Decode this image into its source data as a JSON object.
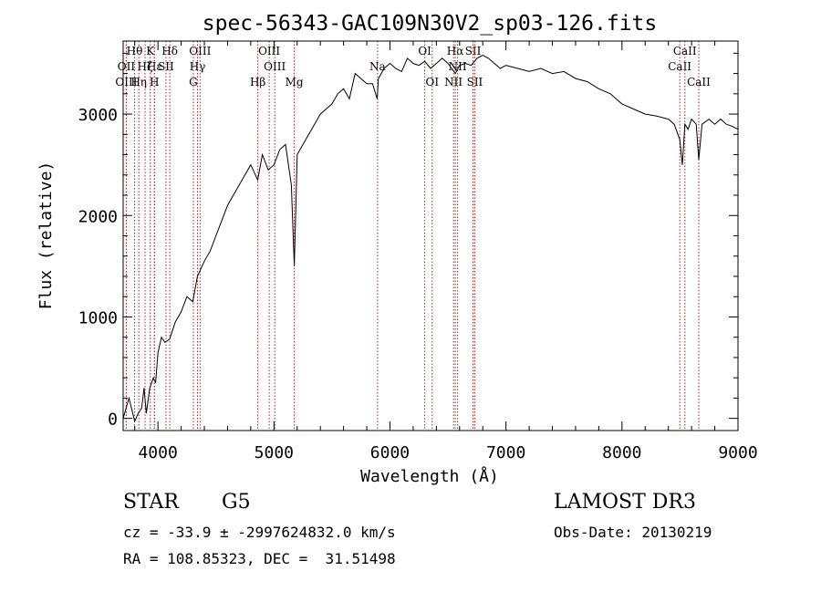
{
  "chart_data": {
    "type": "line",
    "title": "spec-56343-GAC109N30V2_sp03-126.fits",
    "xlabel": "Wavelength (Å)",
    "ylabel": "Flux (relative)",
    "xlim": [
      3700,
      9000
    ],
    "ylim": [
      -120,
      3720
    ],
    "x_ticks": [
      4000,
      5000,
      6000,
      7000,
      8000,
      9000
    ],
    "y_ticks": [
      0,
      1000,
      2000,
      3000
    ],
    "series": [
      {
        "name": "spectrum",
        "x": [
          3700,
          3750,
          3800,
          3830,
          3860,
          3880,
          3900,
          3930,
          3960,
          3980,
          4000,
          4030,
          4060,
          4100,
          4150,
          4200,
          4250,
          4300,
          4340,
          4400,
          4450,
          4500,
          4550,
          4600,
          4650,
          4700,
          4750,
          4800,
          4860,
          4900,
          4950,
          5000,
          5050,
          5100,
          5150,
          5175,
          5200,
          5250,
          5300,
          5350,
          5400,
          5450,
          5500,
          5550,
          5600,
          5650,
          5700,
          5750,
          5800,
          5850,
          5890,
          5900,
          5950,
          6000,
          6050,
          6100,
          6150,
          6200,
          6250,
          6300,
          6350,
          6400,
          6450,
          6500,
          6563,
          6600,
          6650,
          6700,
          6750,
          6800,
          6850,
          6900,
          6950,
          7000,
          7100,
          7200,
          7300,
          7400,
          7500,
          7600,
          7700,
          7800,
          7900,
          8000,
          8100,
          8200,
          8300,
          8400,
          8450,
          8498,
          8520,
          8542,
          8570,
          8600,
          8640,
          8662,
          8690,
          8750,
          8800,
          8850,
          8900,
          8950,
          9000
        ],
        "y": [
          0,
          200,
          -30,
          50,
          100,
          300,
          50,
          300,
          400,
          350,
          650,
          800,
          750,
          780,
          950,
          1050,
          1200,
          1150,
          1400,
          1550,
          1650,
          1800,
          1950,
          2100,
          2200,
          2300,
          2400,
          2500,
          2350,
          2600,
          2450,
          2500,
          2650,
          2700,
          2300,
          1500,
          2600,
          2700,
          2800,
          2900,
          3000,
          3050,
          3100,
          3200,
          3250,
          3150,
          3400,
          3350,
          3300,
          3300,
          3150,
          3350,
          3450,
          3500,
          3450,
          3420,
          3550,
          3500,
          3480,
          3520,
          3450,
          3500,
          3550,
          3500,
          3400,
          3480,
          3500,
          3480,
          3550,
          3580,
          3550,
          3500,
          3450,
          3480,
          3450,
          3420,
          3450,
          3400,
          3420,
          3350,
          3320,
          3250,
          3200,
          3100,
          3050,
          3000,
          2980,
          2950,
          2900,
          2750,
          2500,
          2900,
          2850,
          2950,
          2900,
          2550,
          2900,
          2950,
          2900,
          2950,
          2900,
          2880,
          2850
        ]
      }
    ],
    "lines": [
      {
        "label": "Hθ",
        "x": 3798,
        "row": 0
      },
      {
        "label": "OII",
        "x": 3727,
        "row": 1
      },
      {
        "label": "OIII",
        "x": 3727,
        "row": 2
      },
      {
        "label": "Hζ",
        "x": 3889,
        "row": 1
      },
      {
        "label": "Hε",
        "x": 3970,
        "row": 1
      },
      {
        "label": "Hη",
        "x": 3835,
        "row": 2
      },
      {
        "label": "K",
        "x": 3934,
        "row": 0
      },
      {
        "label": "H",
        "x": 3969,
        "row": 2
      },
      {
        "label": "SII",
        "x": 4069,
        "row": 1
      },
      {
        "label": "Hδ",
        "x": 4102,
        "row": 0
      },
      {
        "label": "OIII",
        "x": 4363,
        "row": 0
      },
      {
        "label": "Hγ",
        "x": 4341,
        "row": 1
      },
      {
        "label": "G",
        "x": 4305,
        "row": 2
      },
      {
        "label": "OIII",
        "x": 4959,
        "row": 0
      },
      {
        "label": "OIII",
        "x": 5007,
        "row": 1
      },
      {
        "label": "Hβ",
        "x": 4861,
        "row": 2
      },
      {
        "label": "Mg",
        "x": 5175,
        "row": 2
      },
      {
        "label": "Na",
        "x": 5893,
        "row": 1
      },
      {
        "label": "OI",
        "x": 6300,
        "row": 0
      },
      {
        "label": "OI",
        "x": 6364,
        "row": 2
      },
      {
        "label": "Hα",
        "x": 6563,
        "row": 0
      },
      {
        "label": "NII",
        "x": 6548,
        "row": 2
      },
      {
        "label": "NII",
        "x": 6583,
        "row": 1
      },
      {
        "label": "SII",
        "x": 6716,
        "row": 0
      },
      {
        "label": "SII",
        "x": 6731,
        "row": 2
      },
      {
        "label": "CaII",
        "x": 8498,
        "row": 1
      },
      {
        "label": "CaII",
        "x": 8542,
        "row": 0
      },
      {
        "label": "CaII",
        "x": 8662,
        "row": 2
      }
    ]
  },
  "info": {
    "object_type": "STAR",
    "subclass": "G5",
    "survey": "LAMOST DR3",
    "cz": "cz = -33.9 ± -2997624832.0 km/s",
    "obs_date": "Obs-Date: 20130219",
    "coords": "RA = 108.85323, DEC =  31.51498"
  },
  "colors": {
    "line_marker": "#b22222",
    "spectrum": "#000000",
    "background": "#ffffff"
  }
}
